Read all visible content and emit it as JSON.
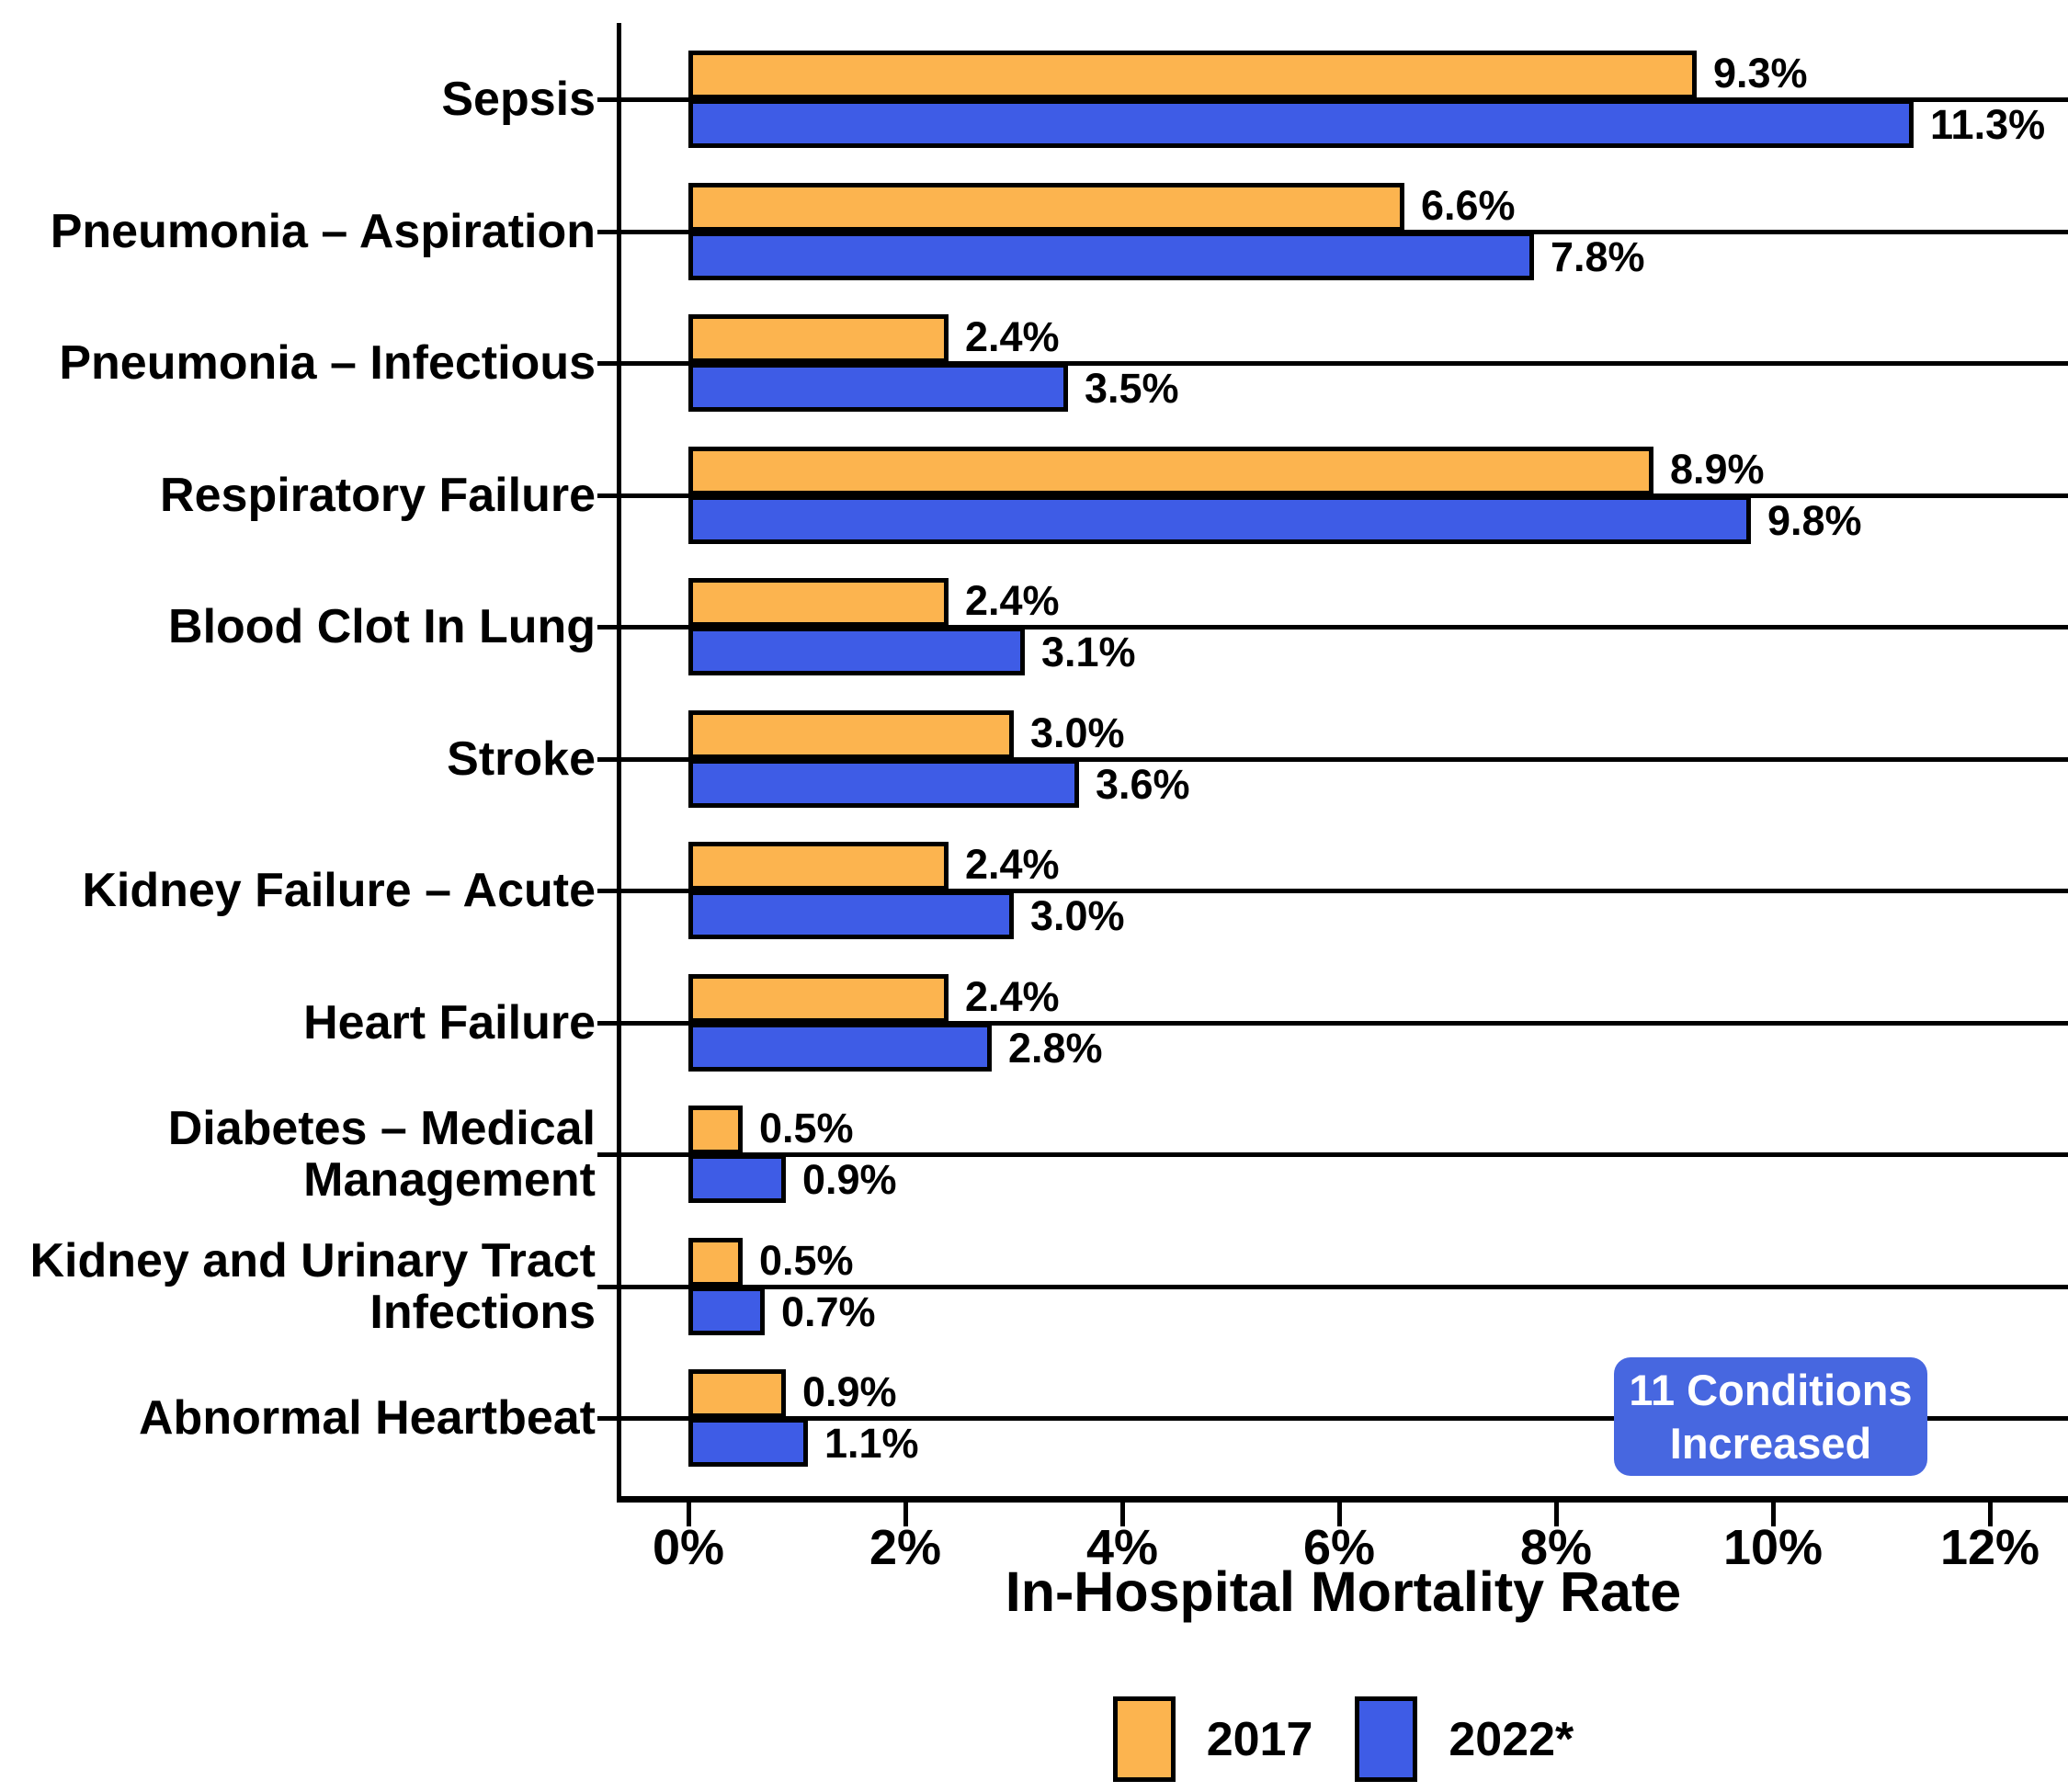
{
  "chart_data": {
    "type": "bar",
    "orientation": "horizontal",
    "xlabel": "In-Hospital Mortality Rate",
    "xlim": [
      0,
      12
    ],
    "grid": "horizontal-category-lines",
    "legend_position": "bottom-center",
    "x_ticks": [
      {
        "value": 0,
        "label": "0%"
      },
      {
        "value": 2,
        "label": "2%"
      },
      {
        "value": 4,
        "label": "4%"
      },
      {
        "value": 6,
        "label": "6%"
      },
      {
        "value": 8,
        "label": "8%"
      },
      {
        "value": 10,
        "label": "10%"
      },
      {
        "value": 12,
        "label": "12%"
      }
    ],
    "categories": [
      {
        "lines": [
          "Sepsis"
        ]
      },
      {
        "lines": [
          "Pneumonia – Aspiration"
        ]
      },
      {
        "lines": [
          "Pneumonia – Infectious"
        ]
      },
      {
        "lines": [
          "Respiratory Failure"
        ]
      },
      {
        "lines": [
          "Blood Clot In Lung"
        ]
      },
      {
        "lines": [
          "Stroke"
        ]
      },
      {
        "lines": [
          "Kidney Failure – Acute"
        ]
      },
      {
        "lines": [
          "Heart Failure"
        ]
      },
      {
        "lines": [
          "Diabetes – Medical",
          "Management"
        ]
      },
      {
        "lines": [
          "Kidney and Urinary Tract",
          "Infections"
        ]
      },
      {
        "lines": [
          "Abnormal Heartbeat"
        ]
      }
    ],
    "series": [
      {
        "name": "2017",
        "color": "#FCB44F",
        "values": [
          9.3,
          6.6,
          2.4,
          8.9,
          2.4,
          3.0,
          2.4,
          2.4,
          0.5,
          0.5,
          0.9
        ],
        "labels": [
          "9.3%",
          "6.6%",
          "2.4%",
          "8.9%",
          "2.4%",
          "3.0%",
          "2.4%",
          "2.4%",
          "0.5%",
          "0.5%",
          "0.9%"
        ]
      },
      {
        "name": "2022*",
        "color": "#3E5CE6",
        "values": [
          11.3,
          7.8,
          3.5,
          9.8,
          3.1,
          3.6,
          3.0,
          2.8,
          0.9,
          0.7,
          1.1
        ],
        "labels": [
          "11.3%",
          "7.8%",
          "3.5%",
          "9.8%",
          "3.1%",
          "3.6%",
          "3.0%",
          "2.8%",
          "0.9%",
          "0.7%",
          "1.1%"
        ]
      }
    ],
    "annotation": {
      "line1": "11 Conditions",
      "line2": "Increased",
      "bg_color": "#4767E0",
      "text_color": "#FFFFFF"
    },
    "colors": {
      "axis": "#000000",
      "background": "#FFFFFF"
    }
  }
}
